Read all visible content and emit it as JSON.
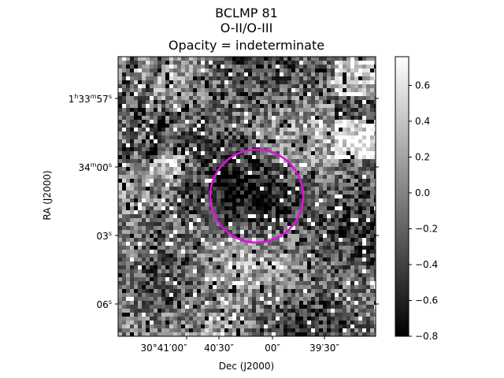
{
  "chart_data": {
    "type": "heatmap",
    "title": [
      "BCLMP 81",
      "O-II/O-III",
      "Opacity = indeterminate"
    ],
    "xlabel": "Dec (J2000)",
    "ylabel": "RA (J2000)",
    "x_ticks": [
      {
        "label": "30°41′00″"
      },
      {
        "label": "40′30″"
      },
      {
        "label": "00″"
      },
      {
        "label": "39′30″"
      }
    ],
    "y_ticks": [
      {
        "base": "1",
        "sup1": "h",
        "mid": "33",
        "sup2": "m",
        "end": "57",
        "sup3": "s"
      },
      {
        "base": "",
        "sup1": "",
        "mid": "34",
        "sup2": "m",
        "end": "00",
        "sup3": "s"
      },
      {
        "base": "",
        "sup1": "",
        "mid": "",
        "sup2": "",
        "end": "03",
        "sup3": "s"
      },
      {
        "base": "",
        "sup1": "",
        "mid": "",
        "sup2": "",
        "end": "06",
        "sup3": "s"
      }
    ],
    "colorbar": {
      "range": [
        -0.8,
        0.76
      ],
      "ticks": [
        0.6,
        0.4,
        0.2,
        0.0,
        -0.2,
        -0.4,
        -0.6,
        -0.8
      ],
      "tick_labels": [
        "0.6",
        "0.4",
        "0.2",
        "0.0",
        "−0.2",
        "−0.4",
        "−0.6",
        "−0.8"
      ],
      "colormap": "gray"
    },
    "annotation": {
      "shape": "circle",
      "color": "#e010e0"
    },
    "grid": false
  }
}
